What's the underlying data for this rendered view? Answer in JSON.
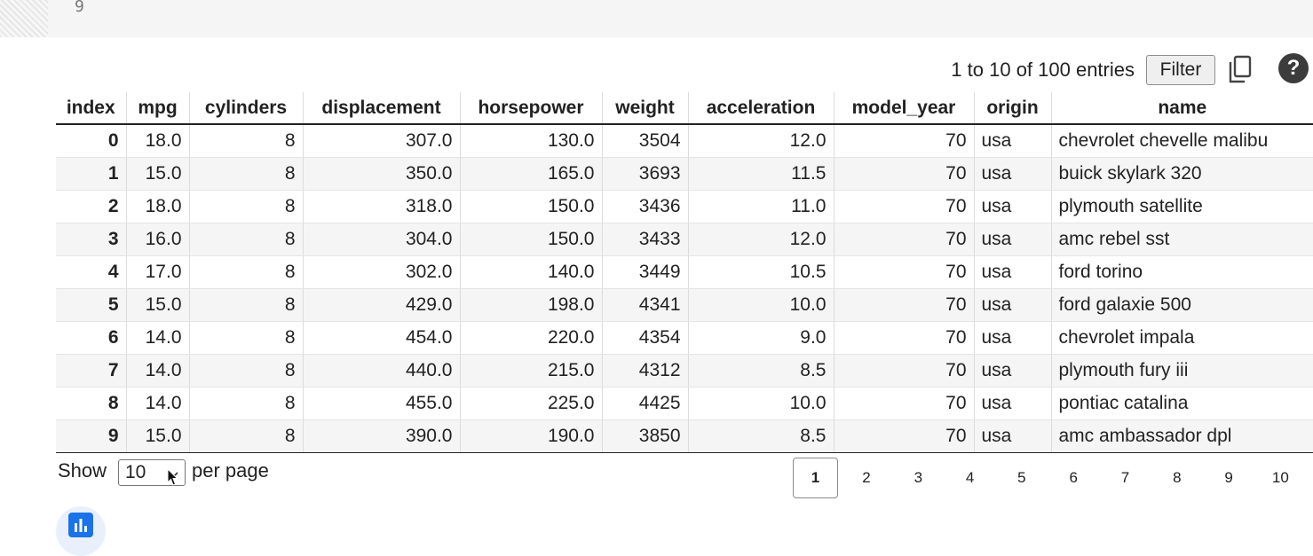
{
  "editor": {
    "line_number": "9"
  },
  "toolbar": {
    "info": "1 to 10 of 100 entries",
    "filter_label": "Filter",
    "copy_icon": "copy-icon",
    "help_label": "?"
  },
  "table": {
    "columns": [
      "index",
      "mpg",
      "cylinders",
      "displacement",
      "horsepower",
      "weight",
      "acceleration",
      "model_year",
      "origin",
      "name"
    ],
    "rows": [
      [
        "0",
        "18.0",
        "8",
        "307.0",
        "130.0",
        "3504",
        "12.0",
        "70",
        "usa",
        "chevrolet chevelle malibu"
      ],
      [
        "1",
        "15.0",
        "8",
        "350.0",
        "165.0",
        "3693",
        "11.5",
        "70",
        "usa",
        "buick skylark 320"
      ],
      [
        "2",
        "18.0",
        "8",
        "318.0",
        "150.0",
        "3436",
        "11.0",
        "70",
        "usa",
        "plymouth satellite"
      ],
      [
        "3",
        "16.0",
        "8",
        "304.0",
        "150.0",
        "3433",
        "12.0",
        "70",
        "usa",
        "amc rebel sst"
      ],
      [
        "4",
        "17.0",
        "8",
        "302.0",
        "140.0",
        "3449",
        "10.5",
        "70",
        "usa",
        "ford torino"
      ],
      [
        "5",
        "15.0",
        "8",
        "429.0",
        "198.0",
        "4341",
        "10.0",
        "70",
        "usa",
        "ford galaxie 500"
      ],
      [
        "6",
        "14.0",
        "8",
        "454.0",
        "220.0",
        "4354",
        "9.0",
        "70",
        "usa",
        "chevrolet impala"
      ],
      [
        "7",
        "14.0",
        "8",
        "440.0",
        "215.0",
        "4312",
        "8.5",
        "70",
        "usa",
        "plymouth fury iii"
      ],
      [
        "8",
        "14.0",
        "8",
        "455.0",
        "225.0",
        "4425",
        "10.0",
        "70",
        "usa",
        "pontiac catalina"
      ],
      [
        "9",
        "15.0",
        "8",
        "390.0",
        "190.0",
        "3850",
        "8.5",
        "70",
        "usa",
        "amc ambassador dpl"
      ]
    ]
  },
  "footer": {
    "show_label": "Show",
    "per_page_value": "10",
    "per_page_label": "per page",
    "pages": [
      "1",
      "2",
      "3",
      "4",
      "5",
      "6",
      "7",
      "8",
      "9",
      "10"
    ],
    "current_page": "1"
  },
  "colors": {
    "accent": "#1a73e8",
    "row_stripe": "#f5f5f5"
  }
}
